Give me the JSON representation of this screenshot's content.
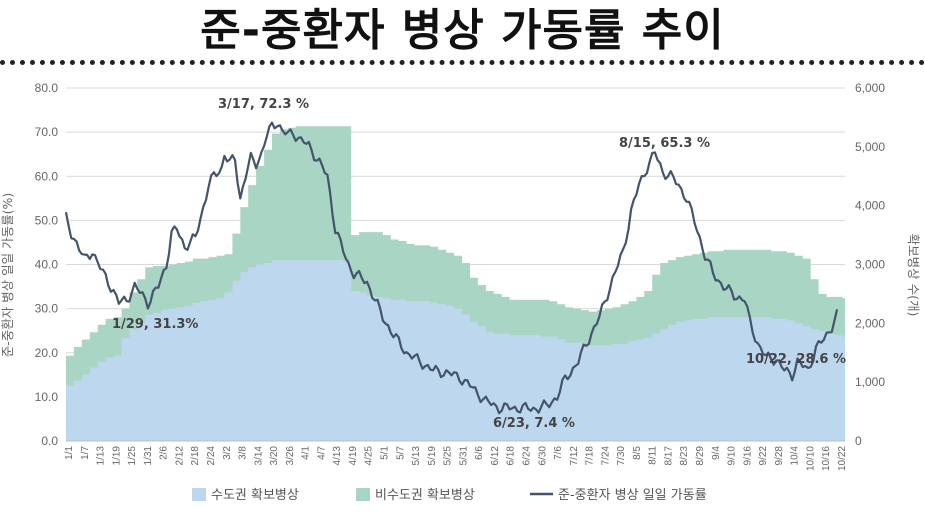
{
  "title": "준-중환자 병상 가동률 추이",
  "chart_data": {
    "type": "area",
    "title": "준-중환자 병상 가동률 추이",
    "ylabel_left": "준-중환자 병상 일일 가동률(%)",
    "ylabel_right": "확보병상 수(개)",
    "ylim_left": [
      0,
      80
    ],
    "ylim_right": [
      0,
      6000
    ],
    "yticks_left": [
      "0.0",
      "10.0",
      "20.0",
      "30.0",
      "40.0",
      "50.0",
      "60.0",
      "70.0",
      "80.0"
    ],
    "yticks_right": [
      "0",
      "1,000",
      "2,000",
      "3,000",
      "4,000",
      "5,000",
      "6,000"
    ],
    "xticks": [
      "1/1",
      "1/7",
      "1/13",
      "1/19",
      "1/25",
      "1/31",
      "2/6",
      "2/12",
      "2/18",
      "2/24",
      "3/2",
      "3/8",
      "3/14",
      "3/20",
      "3/26",
      "4/1",
      "4/7",
      "4/13",
      "4/19",
      "4/25",
      "5/1",
      "5/7",
      "5/13",
      "5/19",
      "5/25",
      "5/31",
      "6/6",
      "6/12",
      "6/18",
      "6/24",
      "6/30",
      "7/6",
      "7/12",
      "7/18",
      "7/24",
      "7/30",
      "8/5",
      "8/11",
      "8/17",
      "8/23",
      "8/29",
      "9/4",
      "9/10",
      "9/16",
      "9/22",
      "9/28",
      "10/4",
      "10/10",
      "10/16",
      "10/22"
    ],
    "legend": [
      "수도권 확보병상",
      "비수도권 확보병상",
      "준-중환자 병상 일일 가동률"
    ],
    "legend_position": "bottom",
    "colors": {
      "capital": "#bdd7ee",
      "noncapital": "#a9d5c4",
      "rate": "#44546a"
    },
    "series": [
      {
        "name": "수도권 확보병상",
        "axis": "right",
        "kind": "stacked-area",
        "points": [
          [
            1,
            950
          ],
          [
            5,
            1050
          ],
          [
            10,
            1250
          ],
          [
            15,
            1400
          ],
          [
            19,
            1450
          ],
          [
            22,
            1750
          ],
          [
            26,
            1950
          ],
          [
            31,
            2150
          ],
          [
            40,
            2250
          ],
          [
            50,
            2350
          ],
          [
            60,
            2450
          ],
          [
            66,
            2850
          ],
          [
            70,
            2950
          ],
          [
            74,
            3000
          ],
          [
            80,
            3080
          ],
          [
            100,
            3080
          ],
          [
            108,
            3050
          ],
          [
            109,
            2550
          ],
          [
            115,
            2480
          ],
          [
            125,
            2400
          ],
          [
            140,
            2350
          ],
          [
            148,
            2250
          ],
          [
            155,
            2000
          ],
          [
            160,
            1850
          ],
          [
            165,
            1820
          ],
          [
            170,
            1800
          ],
          [
            183,
            1780
          ],
          [
            188,
            1700
          ],
          [
            200,
            1620
          ],
          [
            210,
            1650
          ],
          [
            215,
            1700
          ],
          [
            220,
            1750
          ],
          [
            230,
            2000
          ],
          [
            240,
            2080
          ],
          [
            250,
            2100
          ],
          [
            265,
            2100
          ],
          [
            275,
            2050
          ],
          [
            280,
            1950
          ],
          [
            285,
            1880
          ],
          [
            296,
            1760
          ]
        ]
      },
      {
        "name": "비수도권 확보병상",
        "axis": "right",
        "kind": "stacked-area",
        "points": [
          [
            1,
            1450
          ],
          [
            5,
            1650
          ],
          [
            10,
            1850
          ],
          [
            15,
            2050
          ],
          [
            19,
            2100
          ],
          [
            22,
            2250
          ],
          [
            26,
            2600
          ],
          [
            31,
            2950
          ],
          [
            40,
            3000
          ],
          [
            50,
            3100
          ],
          [
            60,
            3150
          ],
          [
            62,
            3200
          ],
          [
            66,
            3850
          ],
          [
            68,
            4100
          ],
          [
            70,
            4350
          ],
          [
            72,
            4600
          ],
          [
            75,
            4850
          ],
          [
            78,
            5150
          ],
          [
            80,
            5300
          ],
          [
            90,
            5350
          ],
          [
            108,
            5350
          ],
          [
            109,
            3500
          ],
          [
            112,
            3550
          ],
          [
            120,
            3550
          ],
          [
            122,
            3450
          ],
          [
            130,
            3350
          ],
          [
            140,
            3300
          ],
          [
            150,
            3100
          ],
          [
            155,
            2700
          ],
          [
            160,
            2550
          ],
          [
            165,
            2450
          ],
          [
            170,
            2400
          ],
          [
            183,
            2400
          ],
          [
            188,
            2300
          ],
          [
            200,
            2200
          ],
          [
            205,
            2250
          ],
          [
            210,
            2300
          ],
          [
            215,
            2400
          ],
          [
            220,
            2550
          ],
          [
            225,
            3000
          ],
          [
            230,
            3100
          ],
          [
            240,
            3200
          ],
          [
            250,
            3250
          ],
          [
            265,
            3250
          ],
          [
            275,
            3200
          ],
          [
            280,
            3100
          ],
          [
            285,
            2500
          ],
          [
            290,
            2450
          ],
          [
            296,
            2430
          ]
        ]
      },
      {
        "name": "준-중환자 병상 일일 가동률",
        "axis": "left",
        "kind": "line",
        "points": [
          [
            1,
            50.5
          ],
          [
            3,
            47
          ],
          [
            5,
            45
          ],
          [
            8,
            41
          ],
          [
            11,
            43
          ],
          [
            15,
            38
          ],
          [
            19,
            34
          ],
          [
            21,
            31.3
          ],
          [
            24,
            32
          ],
          [
            27,
            35
          ],
          [
            30,
            33
          ],
          [
            32,
            31.3
          ],
          [
            36,
            35
          ],
          [
            39,
            40
          ],
          [
            41,
            47
          ],
          [
            43,
            48
          ],
          [
            46,
            44
          ],
          [
            48,
            45
          ],
          [
            50,
            46
          ],
          [
            53,
            53
          ],
          [
            55,
            58
          ],
          [
            57,
            60
          ],
          [
            60,
            62
          ],
          [
            61,
            65
          ],
          [
            63,
            63
          ],
          [
            65,
            64
          ],
          [
            67,
            55
          ],
          [
            69,
            60
          ],
          [
            71,
            64
          ],
          [
            73,
            63
          ],
          [
            75,
            65
          ],
          [
            77,
            69
          ],
          [
            79,
            71.5
          ],
          [
            81,
            72.3
          ],
          [
            83,
            70
          ],
          [
            85,
            69.5
          ],
          [
            87,
            70
          ],
          [
            90,
            68
          ],
          [
            93,
            67
          ],
          [
            95,
            65
          ],
          [
            97,
            63
          ],
          [
            100,
            60
          ],
          [
            103,
            48
          ],
          [
            106,
            43
          ],
          [
            108,
            40
          ],
          [
            110,
            38
          ],
          [
            115,
            36
          ],
          [
            118,
            32
          ],
          [
            121,
            28
          ],
          [
            125,
            24
          ],
          [
            130,
            20
          ],
          [
            135,
            18
          ],
          [
            140,
            16
          ],
          [
            145,
            15.5
          ],
          [
            150,
            14.5
          ],
          [
            155,
            12
          ],
          [
            160,
            9
          ],
          [
            165,
            7.5
          ],
          [
            170,
            7.5
          ],
          [
            175,
            7.4
          ],
          [
            180,
            7.4
          ],
          [
            183,
            8
          ],
          [
            187,
            10
          ],
          [
            190,
            14
          ],
          [
            195,
            18
          ],
          [
            198,
            22
          ],
          [
            203,
            28
          ],
          [
            207,
            35
          ],
          [
            212,
            43
          ],
          [
            215,
            52
          ],
          [
            218,
            58
          ],
          [
            221,
            62
          ],
          [
            224,
            65.3
          ],
          [
            227,
            61
          ],
          [
            230,
            60
          ],
          [
            233,
            58
          ],
          [
            236,
            55
          ],
          [
            240,
            48
          ],
          [
            243,
            42
          ],
          [
            246,
            38
          ],
          [
            250,
            35
          ],
          [
            254,
            33
          ],
          [
            258,
            32
          ],
          [
            260,
            27
          ],
          [
            263,
            22
          ],
          [
            266,
            19
          ],
          [
            270,
            18.5
          ],
          [
            273,
            16
          ],
          [
            276,
            15
          ],
          [
            278,
            18
          ],
          [
            280,
            17
          ],
          [
            282,
            16
          ],
          [
            285,
            21
          ],
          [
            288,
            23
          ],
          [
            291,
            26
          ],
          [
            293,
            28.6
          ]
        ]
      }
    ],
    "annotations": [
      "3/17, 72.3 %",
      "1/29, 31.3%",
      "8/15, 65.3 %",
      "6/23, 7.4 %",
      "10/22, 28.6 %"
    ]
  }
}
